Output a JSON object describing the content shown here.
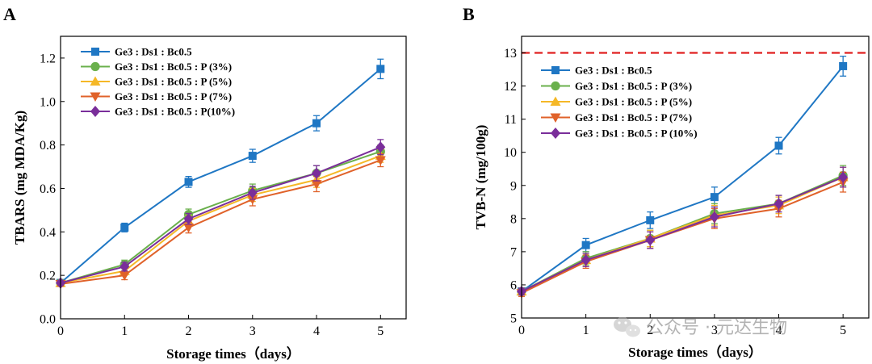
{
  "chart_data": [
    {
      "panel": "A",
      "type": "line",
      "title": "",
      "xlabel": "Storage times（days）",
      "ylabel": "TBARS (mg MDA/Kg)",
      "xlim": [
        0,
        5.4
      ],
      "ylim": [
        0.0,
        1.3
      ],
      "xticks": [
        0,
        1,
        2,
        3,
        4,
        5
      ],
      "yticks": [
        0.0,
        0.2,
        0.4,
        0.6,
        0.8,
        1.0,
        1.2
      ],
      "ytick_labels": [
        "0.0",
        "0.2",
        "0.4",
        "0.6",
        "0.8",
        "1.0",
        "1.2"
      ],
      "legend_position": "top-left",
      "series": [
        {
          "name": "Ge3 : Ds1 : Bc0.5",
          "color": "#1f77c4",
          "marker": "square",
          "x": [
            0,
            1,
            2,
            3,
            4,
            5
          ],
          "y": [
            0.165,
            0.42,
            0.63,
            0.75,
            0.9,
            1.15
          ],
          "err": [
            0.01,
            0.02,
            0.025,
            0.03,
            0.035,
            0.045
          ]
        },
        {
          "name": "Ge3 : Ds1 : Bc0.5 : P (3%)",
          "color": "#6ab04c",
          "marker": "circle",
          "x": [
            0,
            1,
            2,
            3,
            4,
            5
          ],
          "y": [
            0.165,
            0.25,
            0.48,
            0.59,
            0.67,
            0.77
          ],
          "err": [
            0.01,
            0.02,
            0.025,
            0.03,
            0.035,
            0.03
          ]
        },
        {
          "name": "Ge3 : Ds1 : Bc0.5 : P (5%)",
          "color": "#f5b827",
          "marker": "triangle-up",
          "x": [
            0,
            1,
            2,
            3,
            4,
            5
          ],
          "y": [
            0.165,
            0.22,
            0.45,
            0.57,
            0.64,
            0.75
          ],
          "err": [
            0.01,
            0.02,
            0.025,
            0.03,
            0.035,
            0.03
          ]
        },
        {
          "name": "Ge3 : Ds1 : Bc0.5 : P (7%)",
          "color": "#e0622a",
          "marker": "triangle-down",
          "x": [
            0,
            1,
            2,
            3,
            4,
            5
          ],
          "y": [
            0.16,
            0.2,
            0.42,
            0.55,
            0.62,
            0.73
          ],
          "err": [
            0.01,
            0.02,
            0.025,
            0.03,
            0.035,
            0.03
          ]
        },
        {
          "name": "Ge3 : Ds1 : Bc0.5 : P(10%)",
          "color": "#7a2e9a",
          "marker": "diamond",
          "x": [
            0,
            1,
            2,
            3,
            4,
            5
          ],
          "y": [
            0.165,
            0.24,
            0.46,
            0.58,
            0.67,
            0.79
          ],
          "err": [
            0.01,
            0.02,
            0.025,
            0.03,
            0.035,
            0.035
          ]
        }
      ]
    },
    {
      "panel": "B",
      "type": "line",
      "title": "",
      "xlabel": "Storage times（days）",
      "ylabel": "TVB-N (mg/100g)",
      "xlim": [
        0,
        5.4
      ],
      "ylim": [
        5,
        13.5
      ],
      "xticks": [
        0,
        1,
        2,
        3,
        4,
        5
      ],
      "yticks": [
        5,
        6,
        7,
        8,
        9,
        10,
        11,
        12,
        13
      ],
      "ytick_labels": [
        "5",
        "6",
        "7",
        "8",
        "9",
        "10",
        "11",
        "12",
        "13"
      ],
      "reference_line": {
        "y": 13,
        "color": "#e02020",
        "style": "dashed"
      },
      "legend_position": "top-left",
      "series": [
        {
          "name": "Ge3 : Ds1 : Bc0.5",
          "color": "#1f77c4",
          "marker": "square",
          "x": [
            0,
            1,
            2,
            3,
            4,
            5
          ],
          "y": [
            5.8,
            7.2,
            7.95,
            8.65,
            10.2,
            12.6
          ],
          "err": [
            0.1,
            0.2,
            0.25,
            0.3,
            0.25,
            0.3
          ]
        },
        {
          "name": "Ge3 : Ds1 : Bc0.5 : P (3%)",
          "color": "#6ab04c",
          "marker": "circle",
          "x": [
            0,
            1,
            2,
            3,
            4,
            5
          ],
          "y": [
            5.8,
            6.8,
            7.4,
            8.15,
            8.45,
            9.3
          ],
          "err": [
            0.1,
            0.2,
            0.25,
            0.3,
            0.25,
            0.3
          ]
        },
        {
          "name": "Ge3 : Ds1 : Bc0.5 : P (5%)",
          "color": "#f5b827",
          "marker": "triangle-up",
          "x": [
            0,
            1,
            2,
            3,
            4,
            5
          ],
          "y": [
            5.8,
            6.75,
            7.4,
            8.1,
            8.4,
            9.25
          ],
          "err": [
            0.1,
            0.2,
            0.25,
            0.3,
            0.25,
            0.3
          ]
        },
        {
          "name": "Ge3 : Ds1 : Bc0.5 : P (7%)",
          "color": "#e0622a",
          "marker": "triangle-down",
          "x": [
            0,
            1,
            2,
            3,
            4,
            5
          ],
          "y": [
            5.75,
            6.7,
            7.35,
            8.0,
            8.3,
            9.1
          ],
          "err": [
            0.1,
            0.2,
            0.25,
            0.3,
            0.25,
            0.3
          ]
        },
        {
          "name": "Ge3 : Ds1 : Bc0.5 : P (10%)",
          "color": "#7a2e9a",
          "marker": "diamond",
          "x": [
            0,
            1,
            2,
            3,
            4,
            5
          ],
          "y": [
            5.8,
            6.75,
            7.35,
            8.05,
            8.45,
            9.25
          ],
          "err": [
            0.1,
            0.2,
            0.25,
            0.3,
            0.25,
            0.3
          ]
        }
      ]
    }
  ],
  "watermark": {
    "text": "公众号 · 元达生物",
    "icon": "wechat-icon"
  }
}
